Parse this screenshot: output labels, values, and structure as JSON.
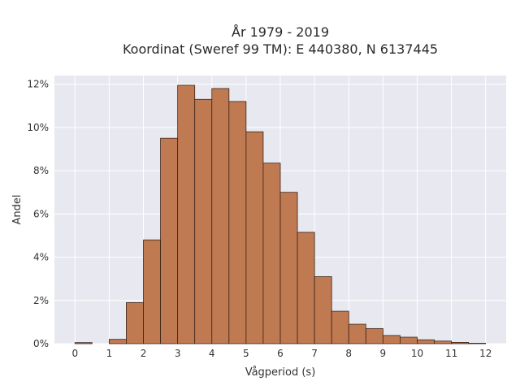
{
  "chart_data": {
    "type": "bar",
    "title_line1": "År 1979 - 2019",
    "title_line2": "Koordinat (Sweref 99 TM): E 440380, N 6137445",
    "xlabel": "Vågperiod (s)",
    "ylabel": "Andel",
    "bin_width": 0.5,
    "bin_starts": [
      0,
      0.5,
      1,
      1.5,
      2,
      2.5,
      3,
      3.5,
      4,
      4.5,
      5,
      5.5,
      6,
      6.5,
      7,
      7.5,
      8,
      8.5,
      9,
      9.5,
      10,
      10.5,
      11,
      11.5,
      12
    ],
    "values": [
      0.05,
      0,
      0.2,
      1.9,
      4.8,
      9.5,
      11.95,
      11.3,
      11.8,
      11.2,
      9.8,
      8.35,
      7.0,
      5.15,
      3.1,
      1.5,
      0.9,
      0.7,
      0.38,
      0.3,
      0.18,
      0.12,
      0.06,
      0.02,
      0
    ],
    "xlim": [
      -0.6,
      12.6
    ],
    "ylim": [
      0,
      12.4
    ],
    "x_ticks": [
      0,
      1,
      2,
      3,
      4,
      5,
      6,
      7,
      8,
      9,
      10,
      11,
      12
    ],
    "y_ticks": [
      0,
      2,
      4,
      6,
      8,
      10,
      12
    ],
    "y_tick_labels": [
      "0%",
      "2%",
      "4%",
      "6%",
      "8%",
      "10%",
      "12%"
    ],
    "grid": true,
    "colors": {
      "bar_fill": "#c07a52",
      "bar_edge": "#3a2418",
      "plot_bg": "#e8e8f0",
      "grid": "#ffffff"
    }
  }
}
